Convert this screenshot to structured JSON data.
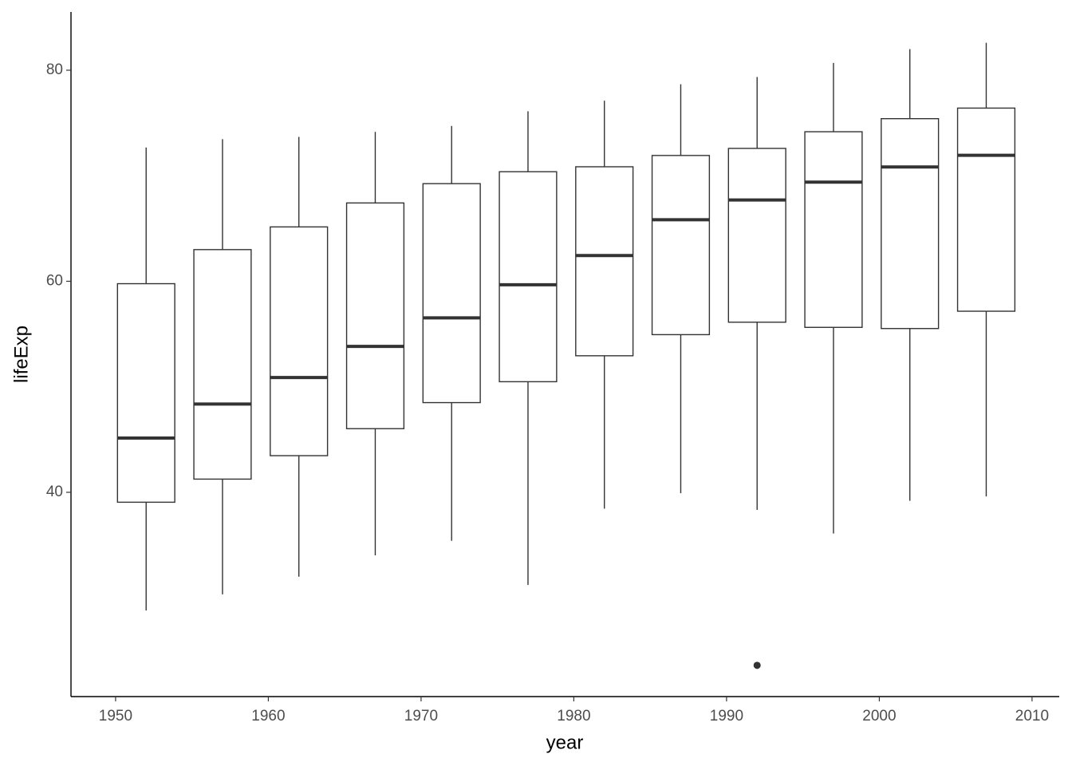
{
  "chart_data": {
    "type": "boxplot",
    "x_label": "year",
    "y_label": "lifeExp",
    "x": [
      1952,
      1957,
      1962,
      1967,
      1972,
      1977,
      1982,
      1987,
      1992,
      1997,
      2002,
      2007
    ],
    "whisker_low": [
      28.8,
      30.33,
      32.0,
      34.02,
      35.4,
      31.22,
      38.45,
      39.91,
      38.33,
      36.09,
      39.19,
      39.61
    ],
    "q1": [
      39.06,
      41.25,
      43.47,
      46.03,
      48.5,
      50.48,
      52.94,
      54.94,
      56.12,
      55.63,
      55.52,
      57.16
    ],
    "median": [
      45.14,
      48.36,
      50.88,
      53.83,
      56.53,
      59.67,
      62.44,
      65.83,
      67.7,
      69.39,
      70.83,
      71.94
    ],
    "q3": [
      59.77,
      63.0,
      65.15,
      67.42,
      69.25,
      70.38,
      70.85,
      71.92,
      72.59,
      74.17,
      75.41,
      76.41
    ],
    "whisker_high": [
      72.67,
      73.47,
      73.68,
      74.16,
      74.72,
      76.11,
      77.11,
      78.67,
      79.36,
      80.69,
      82.0,
      82.6
    ],
    "outliers": [
      {
        "x": 1992,
        "y": 23.6
      }
    ],
    "box_width": 3.75,
    "color": "#333333",
    "fill": "#ffffff",
    "xlim": [
      1947.08,
      2011.78
    ],
    "xticks": [
      1950,
      1960,
      1970,
      1980,
      1990,
      2000,
      2010
    ],
    "ylim": [
      20.64,
      85.52
    ],
    "yticks": [
      40,
      60,
      80
    ],
    "grid": false
  }
}
